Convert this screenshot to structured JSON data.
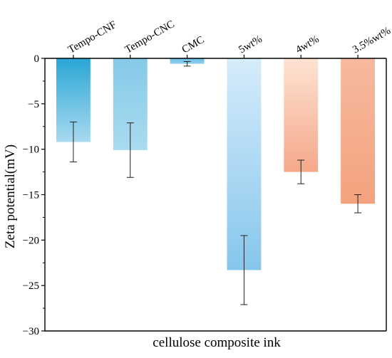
{
  "chart_data": {
    "type": "bar",
    "categories": [
      "Tempo-CNF",
      "Tempo-CNC",
      "CMC",
      "5wt%",
      "4wt%",
      "3.5%wt%"
    ],
    "values": [
      -9.2,
      -10.1,
      -0.6,
      -23.3,
      -12.5,
      -16.0
    ],
    "errors": [
      2.2,
      3.0,
      0.25,
      3.8,
      1.3,
      1.0
    ],
    "colors": [
      {
        "top": "#2aa6d6",
        "bottom": "#a8daf0"
      },
      {
        "top": "#85c9e8",
        "bottom": "#a9dbf0"
      },
      {
        "top": "#6cbde4",
        "bottom": "#8fcfee"
      },
      {
        "top": "#d6ecfb",
        "bottom": "#86c6ec"
      },
      {
        "top": "#fde3d3",
        "bottom": "#f6a889"
      },
      {
        "top": "#f7b99e",
        "bottom": "#f4a27e"
      }
    ],
    "title": "",
    "xlabel": "cellulose composite ink",
    "ylabel": "Zeta potential(mV)",
    "ylim": [
      -30,
      0
    ],
    "yticks": [
      0,
      -5,
      -10,
      -15,
      -20,
      -25,
      -30
    ],
    "xtick_position": "top",
    "grid": false,
    "legend": "none"
  }
}
